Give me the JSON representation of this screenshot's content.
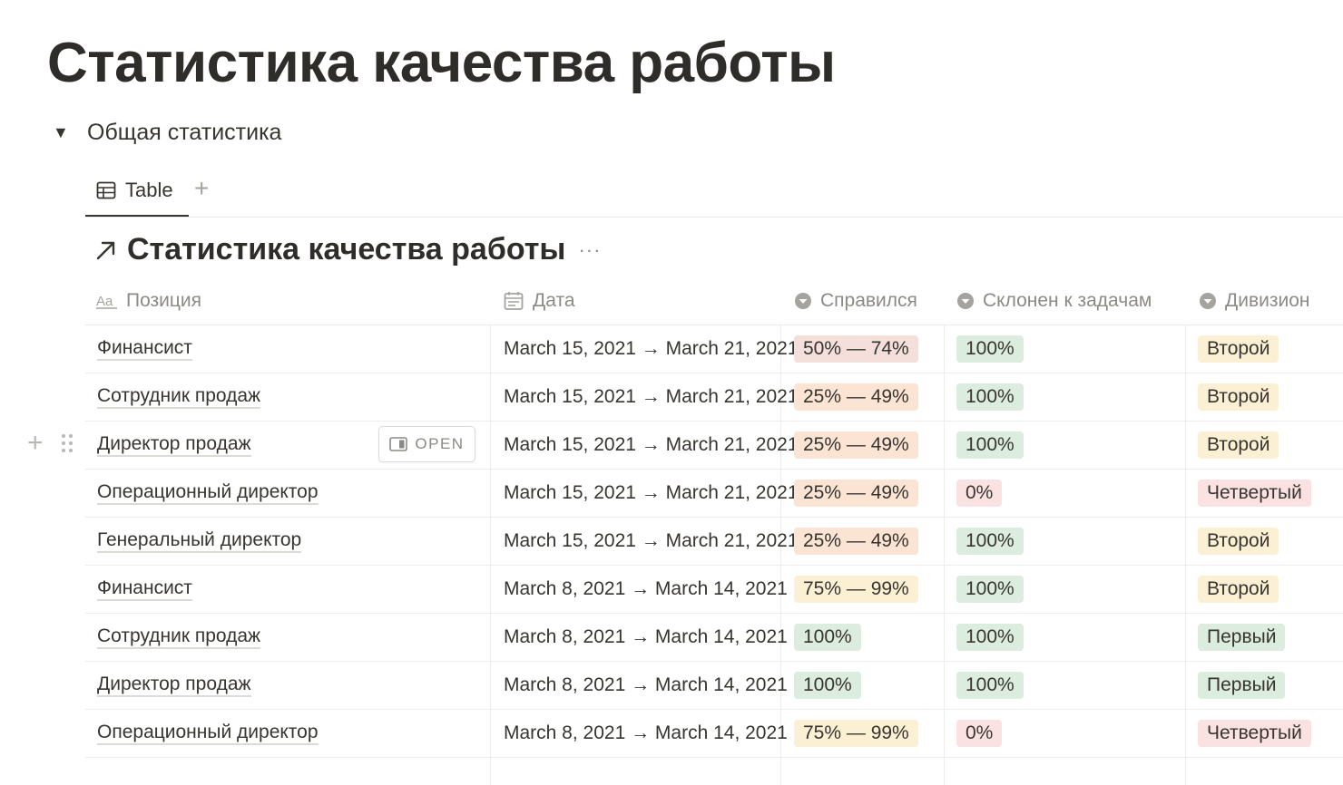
{
  "page": {
    "title": "Статистика качества работы"
  },
  "toggle": {
    "arrow": "▼",
    "label": "Общая статистика"
  },
  "views": {
    "tab_label": "Table",
    "add_label": "+"
  },
  "database": {
    "title": "Статистика качества работы",
    "more": "···"
  },
  "columns": {
    "position": "Позиция",
    "date": "Дата",
    "coped": "Справился",
    "inclined": "Склонен к задачам",
    "division": "Дивизион"
  },
  "open_button": {
    "label": "OPEN"
  },
  "tag_colors": {
    "50% — 74%": "#f4dfdb",
    "25% — 49%": "#fbe4d4",
    "75% — 99%": "#fbf0d3",
    "100%": "#dcecdf",
    "0%": "#fbe2e2",
    "Второй": "#fbf0d3",
    "Четвертый": "#fbe2e2",
    "Первый": "#dcecdf"
  },
  "rows": [
    {
      "position": "Финансист",
      "date": "March 15, 2021 → March 21, 2021",
      "coped": "50% — 74%",
      "inclined": "100%",
      "division": "Второй"
    },
    {
      "position": "Сотрудник продаж",
      "date": "March 15, 2021 → March 21, 2021",
      "coped": "25% — 49%",
      "inclined": "100%",
      "division": "Второй"
    },
    {
      "position": "Директор продаж",
      "date": "March 15, 2021 → March 21, 2021",
      "coped": "25% — 49%",
      "inclined": "100%",
      "division": "Второй"
    },
    {
      "position": "Операционный директор",
      "date": "March 15, 2021 → March 21, 2021",
      "coped": "25% — 49%",
      "inclined": "0%",
      "division": "Четвертый"
    },
    {
      "position": "Генеральный директор",
      "date": "March 15, 2021 → March 21, 2021",
      "coped": "25% — 49%",
      "inclined": "100%",
      "division": "Второй"
    },
    {
      "position": "Финансист",
      "date": "March 8, 2021 → March 14, 2021",
      "coped": "75% — 99%",
      "inclined": "100%",
      "division": "Второй"
    },
    {
      "position": "Сотрудник продаж",
      "date": "March 8, 2021 → March 14, 2021",
      "coped": "100%",
      "inclined": "100%",
      "division": "Первый"
    },
    {
      "position": "Директор продаж",
      "date": "March 8, 2021 → March 14, 2021",
      "coped": "100%",
      "inclined": "100%",
      "division": "Первый"
    },
    {
      "position": "Операционный директор",
      "date": "March 8, 2021 → March 14, 2021",
      "coped": "75% — 99%",
      "inclined": "0%",
      "division": "Четвертый"
    }
  ]
}
